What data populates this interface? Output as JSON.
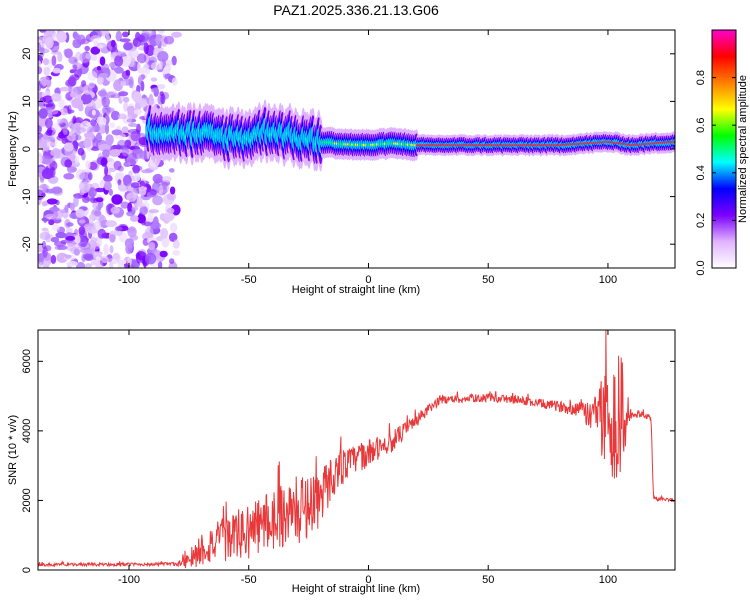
{
  "title": "PAZ1.2025.336.21.13.G06",
  "chart_data": [
    {
      "type": "heatmap",
      "name": "spectrogram",
      "xlabel": "Height of straight line (km)",
      "ylabel": "Frequency (Hz)",
      "xlim": [
        -138,
        128
      ],
      "ylim": [
        -25,
        25
      ],
      "xticks": [
        -100,
        -50,
        0,
        50,
        100
      ],
      "yticks": [
        -20,
        -10,
        0,
        10,
        20
      ],
      "ridge": {
        "x": [
          -90,
          -80,
          -70,
          -60,
          -50,
          -45,
          -40,
          -35,
          -30,
          -25,
          -20,
          -10,
          0,
          10,
          20,
          40,
          60,
          80,
          100,
          105,
          110,
          120,
          128
        ],
        "freq": [
          4,
          3.5,
          3,
          2.5,
          2.5,
          3.5,
          4,
          3,
          2.5,
          2,
          1.5,
          1,
          0.8,
          1.2,
          0.8,
          0.8,
          0.8,
          0.8,
          1.5,
          1.2,
          0.8,
          1.2,
          1.5
        ]
      },
      "colorbar": {
        "label": "Normalized spectral amplitude",
        "ticks": [
          0.0,
          0.2,
          0.4,
          0.6,
          0.8
        ],
        "range": [
          0,
          1
        ],
        "colors": [
          "#ffffff",
          "#e0b3ff",
          "#7a00ff",
          "#0000ff",
          "#00ffff",
          "#00ff00",
          "#ffff00",
          "#ff8000",
          "#ff0000",
          "#ff00cc"
        ]
      }
    },
    {
      "type": "line",
      "name": "snr",
      "xlabel": "Height of straight line (km)",
      "ylabel": "SNR (10 * v/v)",
      "xlim": [
        -138,
        128
      ],
      "ylim": [
        0,
        6900
      ],
      "xticks": [
        -100,
        -50,
        0,
        50,
        100
      ],
      "yticks": [
        0,
        2000,
        4000,
        6000
      ],
      "color": "#e8383a",
      "envelope": {
        "x": [
          -138,
          -80,
          -75,
          -70,
          -60,
          -50,
          -40,
          -30,
          -20,
          -15,
          -10,
          -5,
          0,
          10,
          20,
          30,
          50,
          60,
          80,
          90,
          95,
          100,
          105,
          110,
          115,
          118,
          119,
          120,
          128
        ],
        "mean": [
          150,
          170,
          300,
          600,
          900,
          1100,
          1500,
          1700,
          2100,
          2700,
          3000,
          3200,
          3350,
          3700,
          4300,
          4900,
          4950,
          4900,
          4700,
          4600,
          4500,
          4300,
          4400,
          4450,
          4450,
          4400,
          2100,
          2050,
          2000
        ],
        "noise": [
          40,
          50,
          300,
          500,
          650,
          800,
          900,
          1000,
          900,
          600,
          500,
          400,
          400,
          300,
          200,
          120,
          120,
          120,
          150,
          250,
          1200,
          1500,
          2000,
          120,
          80,
          80,
          60,
          60,
          50
        ]
      }
    }
  ]
}
